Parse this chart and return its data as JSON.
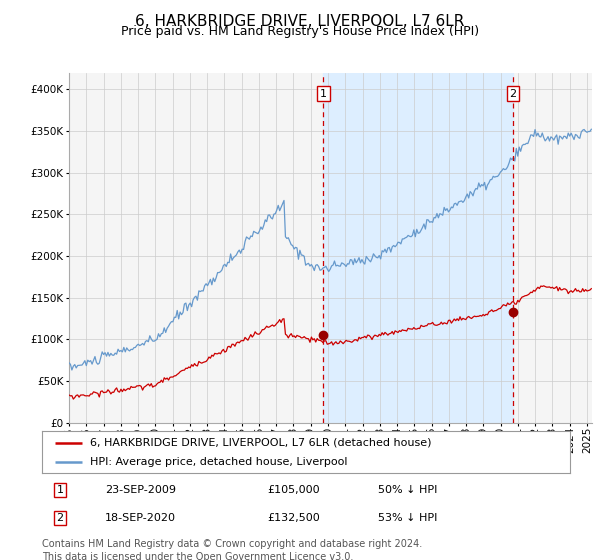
{
  "title": "6, HARKBRIDGE DRIVE, LIVERPOOL, L7 6LR",
  "subtitle": "Price paid vs. HM Land Registry's House Price Index (HPI)",
  "hpi_color": "#6699cc",
  "price_color": "#cc0000",
  "marker_color": "#990000",
  "background_color": "#ffffff",
  "plot_bg_color": "#f5f5f5",
  "shade_color": "#ddeeff",
  "vline_color": "#cc0000",
  "grid_color": "#cccccc",
  "ylim": [
    0,
    420000
  ],
  "yticks": [
    0,
    50000,
    100000,
    150000,
    200000,
    250000,
    300000,
    350000,
    400000
  ],
  "sale1_date_num": 2009.73,
  "sale1_price": 105000,
  "sale2_date_num": 2020.72,
  "sale2_price": 132500,
  "legend_label_price": "6, HARKBRIDGE DRIVE, LIVERPOOL, L7 6LR (detached house)",
  "legend_label_hpi": "HPI: Average price, detached house, Liverpool",
  "footer": "Contains HM Land Registry data © Crown copyright and database right 2024.\nThis data is licensed under the Open Government Licence v3.0.",
  "title_fontsize": 11,
  "subtitle_fontsize": 9,
  "tick_fontsize": 7.5,
  "legend_fontsize": 8,
  "footer_fontsize": 7,
  "sale_data": [
    [
      "1",
      "23-SEP-2009",
      "£105,000",
      "50% ↓ HPI"
    ],
    [
      "2",
      "18-SEP-2020",
      "£132,500",
      "53% ↓ HPI"
    ]
  ]
}
